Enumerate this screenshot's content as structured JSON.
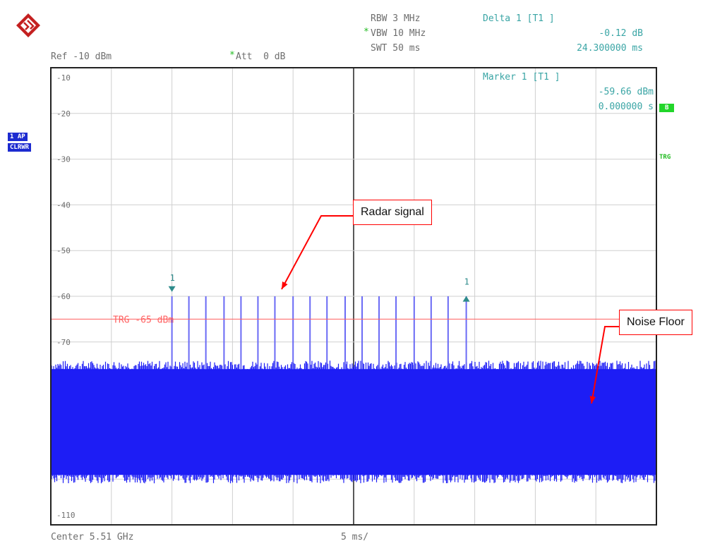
{
  "header": {
    "ref_level": "Ref -10 dBm",
    "att": "Att  0 dB",
    "rbw": "RBW 3 MHz",
    "vbw": "VBW 10 MHz",
    "swt": "SWT 50 ms",
    "delta_label": "Delta 1 [T1 ]",
    "delta_level": "-0.12 dB",
    "delta_time": "24.300000 ms",
    "star_glyph": "*"
  },
  "marker_readout": {
    "label": "Marker 1 [T1 ]",
    "level": "-59.66 dBm",
    "time": "0.000000 s"
  },
  "side_tags": {
    "trace_mode_1": "1 AP",
    "trace_mode_2": "CLRWR",
    "right_box": "B",
    "right_trg": "TRG"
  },
  "footer": {
    "center": "Center 5.51 GHz",
    "span_per_div": "5 ms/"
  },
  "annotations": {
    "radar": "Radar signal",
    "noise": "Noise Floor"
  },
  "colors": {
    "trace": "#1d1df5",
    "grid": "#cfcfcf",
    "trigger_line": "#ff6060",
    "marker": "#2e8b8b",
    "callout": "#ff0000"
  },
  "chart_data": {
    "type": "line",
    "xlabel": "",
    "ylabel": "",
    "y_unit": "dBm",
    "ylim": [
      -110,
      -10
    ],
    "xlim": [
      0,
      50
    ],
    "x_unit": "ms",
    "y_tick_labels": [
      "-10",
      "-20",
      "-30",
      "-40",
      "-50",
      "-60",
      "-70",
      "-110"
    ],
    "y_ticks": [
      -10,
      -20,
      -30,
      -40,
      -50,
      -60,
      -70,
      -110
    ],
    "grid": true,
    "trigger_level": -65,
    "trigger_label": "TRG -65 dBm",
    "noise_floor_band": [
      -100,
      -75
    ],
    "pulse_peak_level": -60,
    "pulse_times_ms": [
      10.0,
      11.4,
      12.8,
      14.3,
      15.7,
      17.1,
      18.5,
      20.0,
      21.4,
      22.8,
      24.3,
      25.7,
      27.1,
      28.5,
      30.0,
      31.4,
      32.8,
      34.3
    ],
    "markers": [
      {
        "label": "1",
        "x": 10.0,
        "y": -59.66,
        "direction": "down"
      },
      {
        "label": "1",
        "x": 34.3,
        "y": -59.78,
        "direction": "up"
      }
    ]
  }
}
